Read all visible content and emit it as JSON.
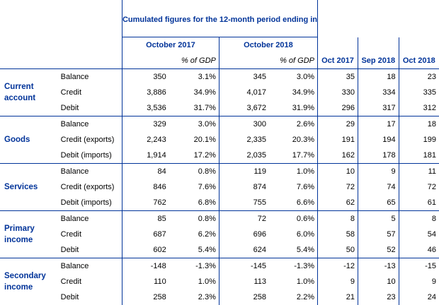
{
  "header": {
    "title": "Cumulated figures for the 12-month period ending in",
    "period_1": "October 2017",
    "period_2": "October 2018",
    "pct_gdp": "% of GDP",
    "month_cols": [
      "Oct 2017",
      "Sep 2018",
      "Oct 2018"
    ]
  },
  "groups": [
    {
      "name": "Current account",
      "rows": [
        {
          "label": "Balance",
          "v17": "350",
          "p17": "3.1%",
          "v18": "345",
          "p18": "3.0%",
          "m1": "35",
          "m2": "18",
          "m3": "23"
        },
        {
          "label": "Credit",
          "v17": "3,886",
          "p17": "34.9%",
          "v18": "4,017",
          "p18": "34.9%",
          "m1": "330",
          "m2": "334",
          "m3": "335"
        },
        {
          "label": "Debit",
          "v17": "3,536",
          "p17": "31.7%",
          "v18": "3,672",
          "p18": "31.9%",
          "m1": "296",
          "m2": "317",
          "m3": "312"
        }
      ]
    },
    {
      "name": "Goods",
      "rows": [
        {
          "label": "Balance",
          "v17": "329",
          "p17": "3.0%",
          "v18": "300",
          "p18": "2.6%",
          "m1": "29",
          "m2": "17",
          "m3": "18"
        },
        {
          "label": "Credit (exports)",
          "v17": "2,243",
          "p17": "20.1%",
          "v18": "2,335",
          "p18": "20.3%",
          "m1": "191",
          "m2": "194",
          "m3": "199"
        },
        {
          "label": "Debit (imports)",
          "v17": "1,914",
          "p17": "17.2%",
          "v18": "2,035",
          "p18": "17.7%",
          "m1": "162",
          "m2": "178",
          "m3": "181"
        }
      ]
    },
    {
      "name": "Services",
      "rows": [
        {
          "label": "Balance",
          "v17": "84",
          "p17": "0.8%",
          "v18": "119",
          "p18": "1.0%",
          "m1": "10",
          "m2": "9",
          "m3": "11"
        },
        {
          "label": "Credit (exports)",
          "v17": "846",
          "p17": "7.6%",
          "v18": "874",
          "p18": "7.6%",
          "m1": "72",
          "m2": "74",
          "m3": "72"
        },
        {
          "label": "Debit (imports)",
          "v17": "762",
          "p17": "6.8%",
          "v18": "755",
          "p18": "6.6%",
          "m1": "62",
          "m2": "65",
          "m3": "61"
        }
      ]
    },
    {
      "name": "Primary income",
      "rows": [
        {
          "label": "Balance",
          "v17": "85",
          "p17": "0.8%",
          "v18": "72",
          "p18": "0.6%",
          "m1": "8",
          "m2": "5",
          "m3": "8"
        },
        {
          "label": "Credit",
          "v17": "687",
          "p17": "6.2%",
          "v18": "696",
          "p18": "6.0%",
          "m1": "58",
          "m2": "57",
          "m3": "54"
        },
        {
          "label": "Debit",
          "v17": "602",
          "p17": "5.4%",
          "v18": "624",
          "p18": "5.4%",
          "m1": "50",
          "m2": "52",
          "m3": "46"
        }
      ]
    },
    {
      "name": "Secondary income",
      "rows": [
        {
          "label": "Balance",
          "v17": "-148",
          "p17": "-1.3%",
          "v18": "-145",
          "p18": "-1.3%",
          "m1": "-12",
          "m2": "-13",
          "m3": "-15"
        },
        {
          "label": "Credit",
          "v17": "110",
          "p17": "1.0%",
          "v18": "113",
          "p18": "1.0%",
          "m1": "9",
          "m2": "10",
          "m3": "9"
        },
        {
          "label": "Debit",
          "v17": "258",
          "p17": "2.3%",
          "v18": "258",
          "p18": "2.2%",
          "m1": "21",
          "m2": "23",
          "m3": "24"
        }
      ]
    }
  ]
}
